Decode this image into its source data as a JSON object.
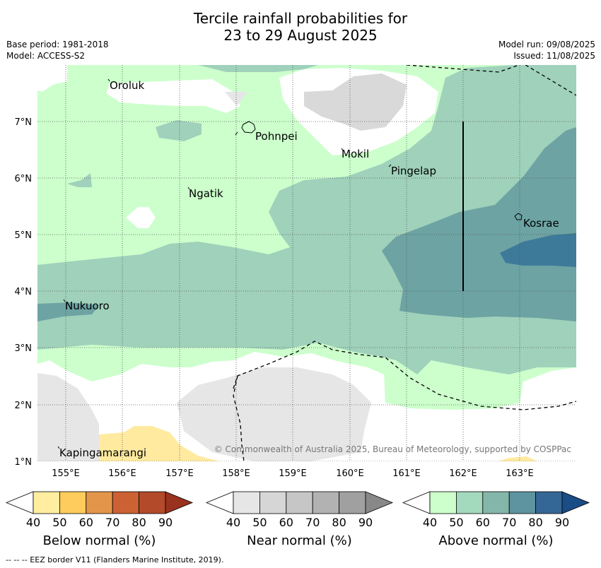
{
  "title": {
    "line1": "Tercile rainfall probabilities for",
    "line2": "23 to 29 August 2025"
  },
  "meta": {
    "base_period": "Base period: 1981-2018",
    "model": "Model: ACCESS-S2",
    "model_run": "Model run: 09/08/2025",
    "issued": "Issued: 11/08/2025"
  },
  "map": {
    "lat_labels": [
      "7°N",
      "6°N",
      "5°N",
      "4°N",
      "3°N",
      "2°N",
      "1°N"
    ],
    "lon_labels": [
      "155°E",
      "156°E",
      "157°E",
      "158°E",
      "159°E",
      "160°E",
      "161°E",
      "162°E",
      "163°E"
    ],
    "places": {
      "oroluk": "Oroluk",
      "pohnpei": "Pohnpei",
      "mokil": "Mokil",
      "pingelap": "Pingelap",
      "ngatik": "Ngatik",
      "kosrae": "Kosrae",
      "nukuoro": "Nukuoro",
      "kapingamarangi": "Kapingamarangi"
    },
    "copyright": "© Commonwealth of Australia 2025, Bureau of Meteorology, supported by COSPPac",
    "colors": {
      "above_50": "#ccffcc",
      "above_60": "#9fd1bb",
      "above_70": "#6da3a3",
      "above_80": "#3d7a9a",
      "near_50": "#e6e6e6",
      "near_60": "#d9d9d9",
      "below_50": "#ffeaa0",
      "below_60": "#ffd470"
    }
  },
  "colorbars": [
    {
      "label": "Below normal (%)",
      "ticks": [
        "40",
        "50",
        "60",
        "70",
        "80",
        "90"
      ],
      "colors": [
        "#ffffff",
        "#ffeda0",
        "#fecc5c",
        "#e3964a",
        "#cc6133",
        "#b34a2a",
        "#99321e"
      ]
    },
    {
      "label": "Near normal (%)",
      "ticks": [
        "40",
        "50",
        "60",
        "70",
        "80",
        "90"
      ],
      "colors": [
        "#ffffff",
        "#e6e6e6",
        "#d6d6d6",
        "#c6c6c6",
        "#b2b2b2",
        "#a0a0a0",
        "#888888"
      ]
    },
    {
      "label": "Above normal (%)",
      "ticks": [
        "40",
        "50",
        "60",
        "70",
        "80",
        "90"
      ],
      "colors": [
        "#ffffff",
        "#ccffcc",
        "#a3d9bc",
        "#85b6aa",
        "#5d94a0",
        "#356796",
        "#1a4c86"
      ]
    }
  ],
  "footnote": "-- -- -- EEZ border V11 (Flanders Marine Institute, 2019)."
}
